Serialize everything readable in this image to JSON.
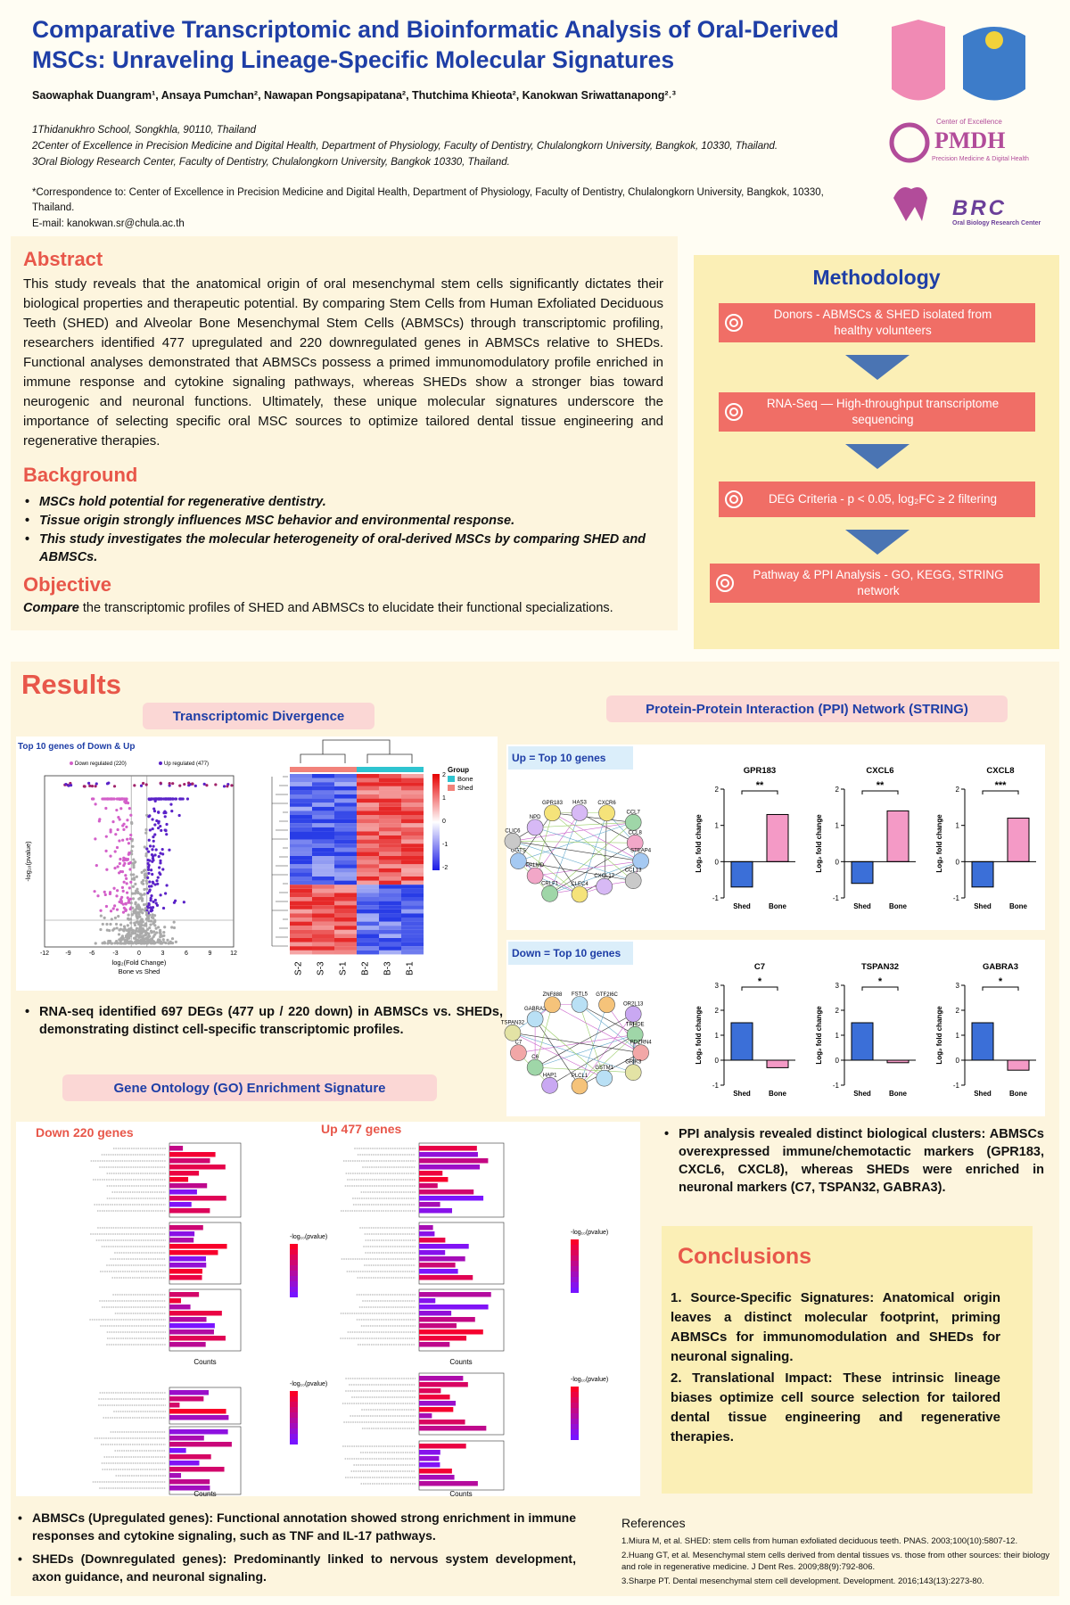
{
  "header": {
    "title": "Comparative Transcriptomic and Bioinformatic Analysis of Oral-Derived MSCs: Unraveling Lineage-Specific Molecular Signatures",
    "authors": "Saowaphak Duangram¹, Ansaya Pumchan², Nawapan Pongsapipatana², Thutchima Khieota², Kanokwan Sriwattanapong²˒³",
    "affiliations": [
      "1Thidanukhro School, Songkhla, 90110, Thailand",
      "2Center of Excellence in Precision Medicine and Digital Health, Department of Physiology, Faculty of Dentistry, Chulalongkorn University, Bangkok, 10330, Thailand.",
      "3Oral Biology Research Center, Faculty of Dentistry, Chulalongkorn University, Bangkok 10330, Thailand."
    ],
    "correspondence": "*Correspondence to: Center of Excellence in Precision Medicine and Digital Health, Department of Physiology, Faculty of Dentistry, Chulalongkorn University, Bangkok, 10330, Thailand.",
    "email": "E-mail: kanokwan.sr@chula.ac.th"
  },
  "logos": {
    "pmdh": "PMDH",
    "pmdh_top": "Center of Excellence",
    "pmdh_sub": "Precision Medicine & Digital Health",
    "brc": "BRC",
    "brc_sub": "Oral Biology Research Center"
  },
  "abstract": {
    "heading": "Abstract",
    "text": "This study reveals that the anatomical origin of oral mesenchymal stem cells significantly dictates their biological properties and therapeutic potential. By comparing Stem Cells from Human Exfoliated Deciduous Teeth (SHED) and Alveolar Bone Mesenchymal Stem Cells (ABMSCs) through transcriptomic profiling, researchers identified 477 upregulated and 220 downregulated genes in ABMSCs relative to SHEDs. Functional analyses demonstrated that ABMSCs possess a primed immunomodulatory profile enriched in immune response and cytokine signaling pathways, whereas SHEDs show a stronger bias toward neurogenic and neuronal functions. Ultimately, these unique molecular signatures underscore the importance of selecting specific oral MSC sources to optimize tailored dental tissue engineering and regenerative therapies."
  },
  "background": {
    "heading": "Background",
    "bullets": [
      "MSCs hold potential for regenerative dentistry.",
      "Tissue origin strongly influences MSC behavior and environmental response.",
      "This study investigates the molecular heterogeneity of oral-derived MSCs by comparing SHED and ABMSCs."
    ]
  },
  "objective": {
    "heading": "Objective",
    "lead": "Compare",
    "text": " the transcriptomic profiles of SHED  and ABMSCs  to elucidate their functional specializations."
  },
  "methodology": {
    "heading": "Methodology",
    "steps": [
      "Donors - ABMSCs & SHED isolated from healthy volunteers",
      "RNA-Seq — High-throughput transcriptome sequencing",
      "DEG Criteria - p < 0.05, log₂FC ≥ 2 filtering",
      "Pathway & PPI Analysis - GO, KEGG, STRING network"
    ]
  },
  "results": {
    "heading": "Results",
    "transcriptomic": {
      "heading": "Transcriptomic Divergence",
      "volcano_title": "Top 10 genes of Down & Up",
      "volcano_legend": [
        "Down regulated (220)",
        "Up regulated (477)"
      ],
      "volcano_xlabel": "log₂(Fold Change)",
      "volcano_xsub": "Bone vs Shed",
      "volcano_ylabel": "-log₁₀(pvalue)",
      "volcano_xticks": [
        -12,
        -9,
        -6,
        -3,
        0,
        3,
        6,
        9,
        12
      ],
      "heatmap_columns": [
        "S-2",
        "S-3",
        "S-1",
        "B-2",
        "B-3",
        "B-1"
      ],
      "heatmap_group_title": "Group",
      "heatmap_groups": [
        "Bone",
        "Shed"
      ],
      "heatmap_scale": [
        2,
        1,
        0,
        -1,
        -2
      ],
      "summary": "RNA-seq identified 697 DEGs (477 up / 220 down) in ABMSCs vs. SHEDs, demonstrating distinct cell-specific transcriptomic profiles."
    },
    "ppi": {
      "heading": "Protein-Protein Interaction (PPI) Network (STRING)",
      "up_label": "Up = Top 10 genes",
      "down_label": "Down = Top 10 genes",
      "up_nodes": [
        "HAS3",
        "CXCR6",
        "CCL7",
        "CCL8",
        "STEAP4",
        "CCL13",
        "CXCL17",
        "CLEC4",
        "CRLF1",
        "PALMD",
        "GGTS",
        "CLIC6",
        "NPD",
        "GPR183"
      ],
      "down_nodes": [
        "FSTL5",
        "GTF2I6C",
        "OR2L13",
        "TRHDE",
        "PDZRN4",
        "GRIK3",
        "GSTM1",
        "PLCL1",
        "HAP1",
        "C6",
        "C7",
        "TSPAN32",
        "GABRA3",
        "ZNF888"
      ],
      "summary": "PPI analysis revealed distinct biological clusters: ABMSCs overexpressed immune/chemotactic markers (GPR183, CXCL6, CXCL8), whereas SHEDs were enriched in neuronal markers (C7, TSPAN32, GABRA3)."
    },
    "go": {
      "heading": "Gene Ontology (GO) Enrichment Signature",
      "down_title": "Down 220 genes",
      "up_title": "Up 477 genes",
      "axis_label": "Counts",
      "legend_title": "-log₁₀(pvalue)",
      "bullets": [
        {
          "lead": "ABMSCs (Upregulated genes):",
          "text": " Functional annotation showed strong enrichment in immune responses and cytokine signaling, such as TNF and IL-17 pathways."
        },
        {
          "lead": "SHEDs (Downregulated genes):",
          "text": " Predominantly linked to nervous system development, axon guidance, and neuronal signaling."
        }
      ]
    }
  },
  "conclusions": {
    "heading": "Conclusions",
    "items": [
      "1. Source-Specific Signatures: Anatomical origin leaves a distinct molecular footprint, priming ABMSCs for immunomodulation and SHEDs for neuronal signaling.",
      "2. Translational Impact: These intrinsic lineage biases optimize cell source selection for tailored dental tissue engineering and regenerative therapies."
    ]
  },
  "references": {
    "heading": "References",
    "items": [
      "1.Miura M, et al. SHED: stem cells from human exfoliated deciduous teeth. PNAS. 2003;100(10):5807-12.",
      "2.Huang GT, et al. Mesenchymal stem cells derived from dental tissues vs. those from other sources: their biology and role in regenerative medicine. J Dent Res. 2009;88(9):792-806.",
      "3.Sharpe PT. Dental mesenchymal stem cell development. Development. 2016;143(13):2273-80."
    ]
  },
  "chart_data": [
    {
      "type": "bar",
      "title": "GPR183",
      "categories": [
        "Shed",
        "Bone"
      ],
      "values": [
        -0.7,
        1.3
      ],
      "colors": [
        "#3b6fd8",
        "#f49ac6"
      ],
      "ylim": [
        -1,
        2
      ],
      "yticks": [
        -1,
        0,
        1,
        2
      ],
      "y_label": "Log₂ fold change",
      "significance": "**"
    },
    {
      "type": "bar",
      "title": "CXCL6",
      "categories": [
        "Shed",
        "Bone"
      ],
      "values": [
        -0.6,
        1.4
      ],
      "colors": [
        "#3b6fd8",
        "#f49ac6"
      ],
      "ylim": [
        -1,
        2
      ],
      "yticks": [
        -1,
        0,
        1,
        2
      ],
      "y_label": "Log₂ fold change",
      "significance": "**"
    },
    {
      "type": "bar",
      "title": "CXCL8",
      "categories": [
        "Shed",
        "Bone"
      ],
      "values": [
        -0.7,
        1.2
      ],
      "colors": [
        "#3b6fd8",
        "#f49ac6"
      ],
      "ylim": [
        -1,
        2
      ],
      "yticks": [
        -1,
        0,
        1,
        2
      ],
      "y_label": "Log₂ fold change",
      "significance": "***"
    },
    {
      "type": "bar",
      "title": "C7",
      "categories": [
        "Shed",
        "Bone"
      ],
      "values": [
        1.5,
        -0.3
      ],
      "colors": [
        "#3b6fd8",
        "#f49ac6"
      ],
      "ylim": [
        -1,
        3
      ],
      "yticks": [
        -1,
        0,
        1,
        2,
        3
      ],
      "y_label": "Log₂ fold change",
      "significance": "*"
    },
    {
      "type": "bar",
      "title": "TSPAN32",
      "categories": [
        "Shed",
        "Bone"
      ],
      "values": [
        1.5,
        -0.1
      ],
      "colors": [
        "#3b6fd8",
        "#f49ac6"
      ],
      "ylim": [
        -1,
        3
      ],
      "yticks": [
        -1,
        0,
        1,
        2,
        3
      ],
      "y_label": "Log₂ fold change",
      "significance": "*"
    },
    {
      "type": "bar",
      "title": "GABRA3",
      "categories": [
        "Shed",
        "Bone"
      ],
      "values": [
        1.5,
        -0.4
      ],
      "colors": [
        "#3b6fd8",
        "#f49ac6"
      ],
      "ylim": [
        -1,
        3
      ],
      "yticks": [
        -1,
        0,
        1,
        2,
        3
      ],
      "y_label": "Log₂ fold change",
      "significance": "*"
    }
  ]
}
